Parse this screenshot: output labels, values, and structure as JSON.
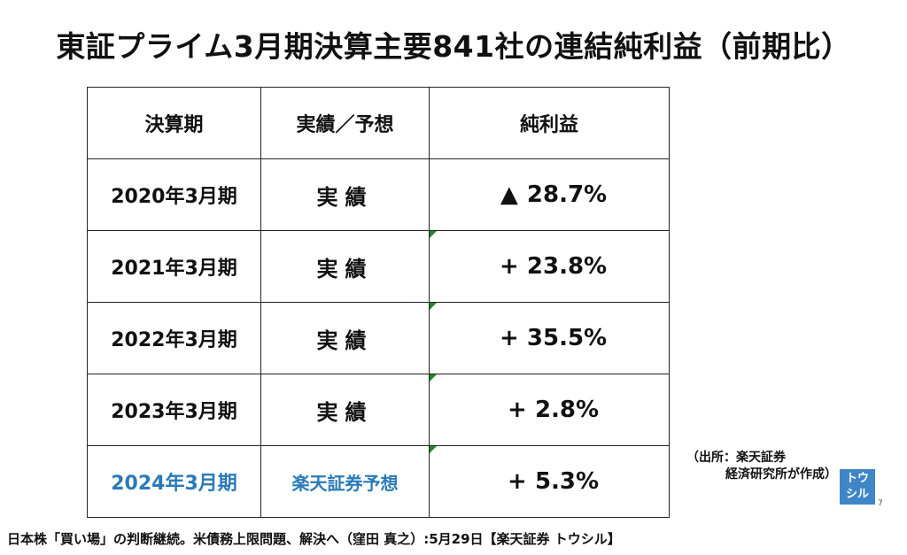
{
  "title": "東証プライム3月期決算主要841社の連結純利益（前期比）",
  "table": {
    "headers": [
      "決算期",
      "実績／予想",
      "純利益"
    ],
    "rows": [
      {
        "period": "2020年3月期",
        "kind": "実績",
        "sign": "▲",
        "value": "28.7%"
      },
      {
        "period": "2021年3月期",
        "kind": "実績",
        "sign": "+",
        "value": "23.8%"
      },
      {
        "period": "2022年3月期",
        "kind": "実績",
        "sign": "+",
        "value": "35.5%"
      },
      {
        "period": "2023年3月期",
        "kind": "実績",
        "sign": "+",
        "value": "2.8%"
      },
      {
        "period": "2024年3月期",
        "kind": "楽天証券予想",
        "sign": "+",
        "value": "5.3%"
      }
    ]
  },
  "source_note": {
    "line1": "（出所：楽天証券",
    "line2": "経済研究所が作成）"
  },
  "logo_text": {
    "line1": "トウ",
    "line2": "シル"
  },
  "page_number": "7",
  "caption": "日本株「買い場」の判断継続。米債務上限問題、解決へ（窪田 真之）:5月29日【楽天証券 トウシル】",
  "colors": {
    "highlight": "#2a7ab8",
    "corner_mark": "#1e8a2c",
    "logo_bg": "#3f86c8"
  }
}
